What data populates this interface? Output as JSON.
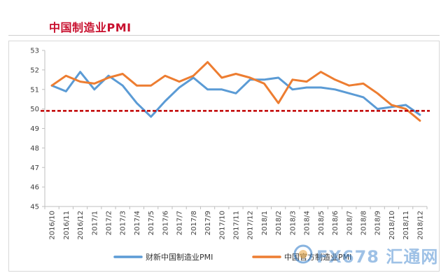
{
  "chart_data": {
    "type": "line",
    "title": "中国制造业PMI",
    "categories": [
      "2016/10",
      "2016/11",
      "2016/12",
      "2017/1",
      "2017/2",
      "2017/3",
      "2017/4",
      "2017/5",
      "2017/6",
      "2017/7",
      "2017/8",
      "2017/9",
      "2017/10",
      "2017/11",
      "2017/12",
      "2018/1",
      "2018/2",
      "2018/3",
      "2018/4",
      "2018/5",
      "2018/6",
      "2018/7",
      "2018/8",
      "2018/9",
      "2018/10",
      "2018/11",
      "2018/12"
    ],
    "series": [
      {
        "name": "财新中国制造业PMI",
        "color": "#5b9bd5",
        "values": [
          51.2,
          50.9,
          51.9,
          51.0,
          51.7,
          51.2,
          50.3,
          49.6,
          50.4,
          51.1,
          51.6,
          51.0,
          51.0,
          50.8,
          51.5,
          51.5,
          51.6,
          51.0,
          51.1,
          51.1,
          51.0,
          50.8,
          50.6,
          50.0,
          50.1,
          50.2,
          49.7
        ]
      },
      {
        "name": "中国官方制造业PMI",
        "color": "#ed7d31",
        "values": [
          51.2,
          51.7,
          51.4,
          51.3,
          51.6,
          51.8,
          51.2,
          51.2,
          51.7,
          51.4,
          51.7,
          52.4,
          51.6,
          51.8,
          51.6,
          51.3,
          50.3,
          51.5,
          51.4,
          51.9,
          51.5,
          51.2,
          51.3,
          50.8,
          50.2,
          50.0,
          49.4
        ]
      }
    ],
    "yticks": [
      45,
      46,
      47,
      48,
      49,
      50,
      51,
      52,
      53
    ],
    "ylim": [
      45,
      53
    ],
    "reference_line": {
      "value": 49.9,
      "color": "#c00000",
      "style": "dashed"
    },
    "grid": false,
    "legend_position": "bottom"
  },
  "watermark": {
    "text": "FX678 汇通网"
  }
}
